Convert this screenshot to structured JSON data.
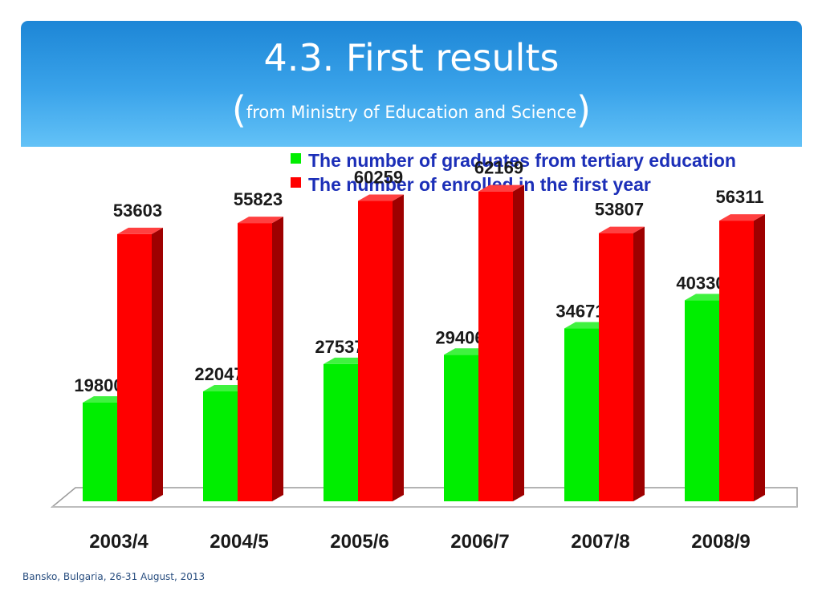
{
  "slide": {
    "title": "4.3. First results",
    "subtitle_open": "(",
    "subtitle": "from Ministry of Education and Science",
    "subtitle_close": ")",
    "footer": "Bansko, Bulgaria, 26-31 August, 2013",
    "header_colors": [
      "#1d86d6",
      "#63c2f7"
    ]
  },
  "chart_data": {
    "type": "bar",
    "title": "",
    "xlabel": "",
    "ylabel": "",
    "categories": [
      "2003/4",
      "2004/5",
      "2005/6",
      "2006/7",
      "2007/8",
      "2008/9"
    ],
    "series": [
      {
        "name": "The number of graduates from tertiary education",
        "color": "#00ee00",
        "values": [
          19800,
          22047,
          27537,
          29406,
          34671,
          40330
        ]
      },
      {
        "name": "The number of enrolled in the first year",
        "color": "#ff0000",
        "values": [
          53603,
          55823,
          60259,
          62169,
          53807,
          56311
        ]
      }
    ],
    "ylim": [
      0,
      70000
    ],
    "grid": false,
    "legend_position": "top-right",
    "data_labels": true,
    "style": "3d-columns"
  }
}
